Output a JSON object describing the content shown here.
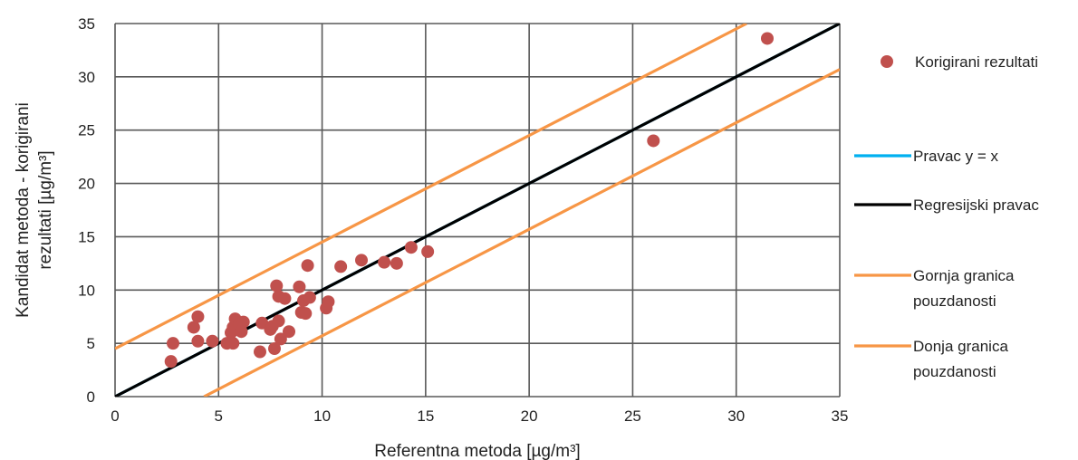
{
  "chart_data": {
    "type": "scatter",
    "xlabel": "Referentna metoda [µg/m³]",
    "ylabel_lines": [
      "Kandidat metoda - korigirani",
      "rezultati [µg/m³]"
    ],
    "xlim": [
      0,
      35
    ],
    "ylim": [
      0,
      35
    ],
    "xticks": [
      "0",
      "5",
      "10",
      "15",
      "20",
      "25",
      "30",
      "35"
    ],
    "yticks": [
      "0",
      "5",
      "10",
      "15",
      "20",
      "25",
      "30",
      "35"
    ],
    "grid": true,
    "legend_placement": "right",
    "scatter": {
      "name": "Korigirani rezultati",
      "color": "#c0504d",
      "points": [
        [
          2.7,
          3.3
        ],
        [
          2.8,
          5.0
        ],
        [
          3.8,
          6.5
        ],
        [
          4.0,
          7.5
        ],
        [
          4.0,
          5.2
        ],
        [
          4.7,
          5.2
        ],
        [
          5.4,
          5.0
        ],
        [
          5.6,
          6.0
        ],
        [
          5.7,
          6.5
        ],
        [
          5.7,
          5.0
        ],
        [
          5.8,
          7.3
        ],
        [
          6.0,
          6.8
        ],
        [
          6.1,
          6.1
        ],
        [
          6.2,
          7.0
        ],
        [
          7.0,
          4.2
        ],
        [
          7.1,
          6.9
        ],
        [
          7.5,
          6.3
        ],
        [
          7.6,
          6.6
        ],
        [
          7.7,
          4.5
        ],
        [
          7.8,
          10.4
        ],
        [
          7.9,
          7.1
        ],
        [
          7.9,
          9.4
        ],
        [
          8.0,
          5.4
        ],
        [
          8.2,
          9.2
        ],
        [
          8.4,
          6.1
        ],
        [
          8.9,
          10.3
        ],
        [
          9.0,
          7.9
        ],
        [
          9.1,
          9.0
        ],
        [
          9.2,
          7.8
        ],
        [
          9.3,
          12.3
        ],
        [
          9.4,
          9.3
        ],
        [
          10.2,
          8.3
        ],
        [
          10.3,
          8.9
        ],
        [
          10.9,
          12.2
        ],
        [
          11.9,
          12.8
        ],
        [
          13.0,
          12.6
        ],
        [
          13.6,
          12.5
        ],
        [
          14.3,
          14.0
        ],
        [
          15.1,
          13.6
        ],
        [
          26.0,
          24.0
        ],
        [
          31.5,
          33.6
        ]
      ]
    },
    "lines": [
      {
        "name": "Pravac y = x",
        "color": "#00b0f0",
        "x": [
          0,
          35
        ],
        "y": [
          0,
          35
        ]
      },
      {
        "name": "Regresijski pravac",
        "color": "#000000",
        "x": [
          0,
          35
        ],
        "y": [
          0,
          35
        ]
      },
      {
        "name": "Gornja granica pouzdanosti",
        "legend_lines": [
          "Gornja granica",
          "pouzdanosti"
        ],
        "color": "#f79646",
        "x": [
          0,
          30.5
        ],
        "y": [
          4.5,
          35
        ]
      },
      {
        "name": "Donja granica pouzdanosti",
        "legend_lines": [
          "Donja granica",
          "pouzdanosti"
        ],
        "color": "#f79646",
        "x": [
          4.3,
          35
        ],
        "y": [
          0,
          30.7
        ]
      }
    ]
  }
}
